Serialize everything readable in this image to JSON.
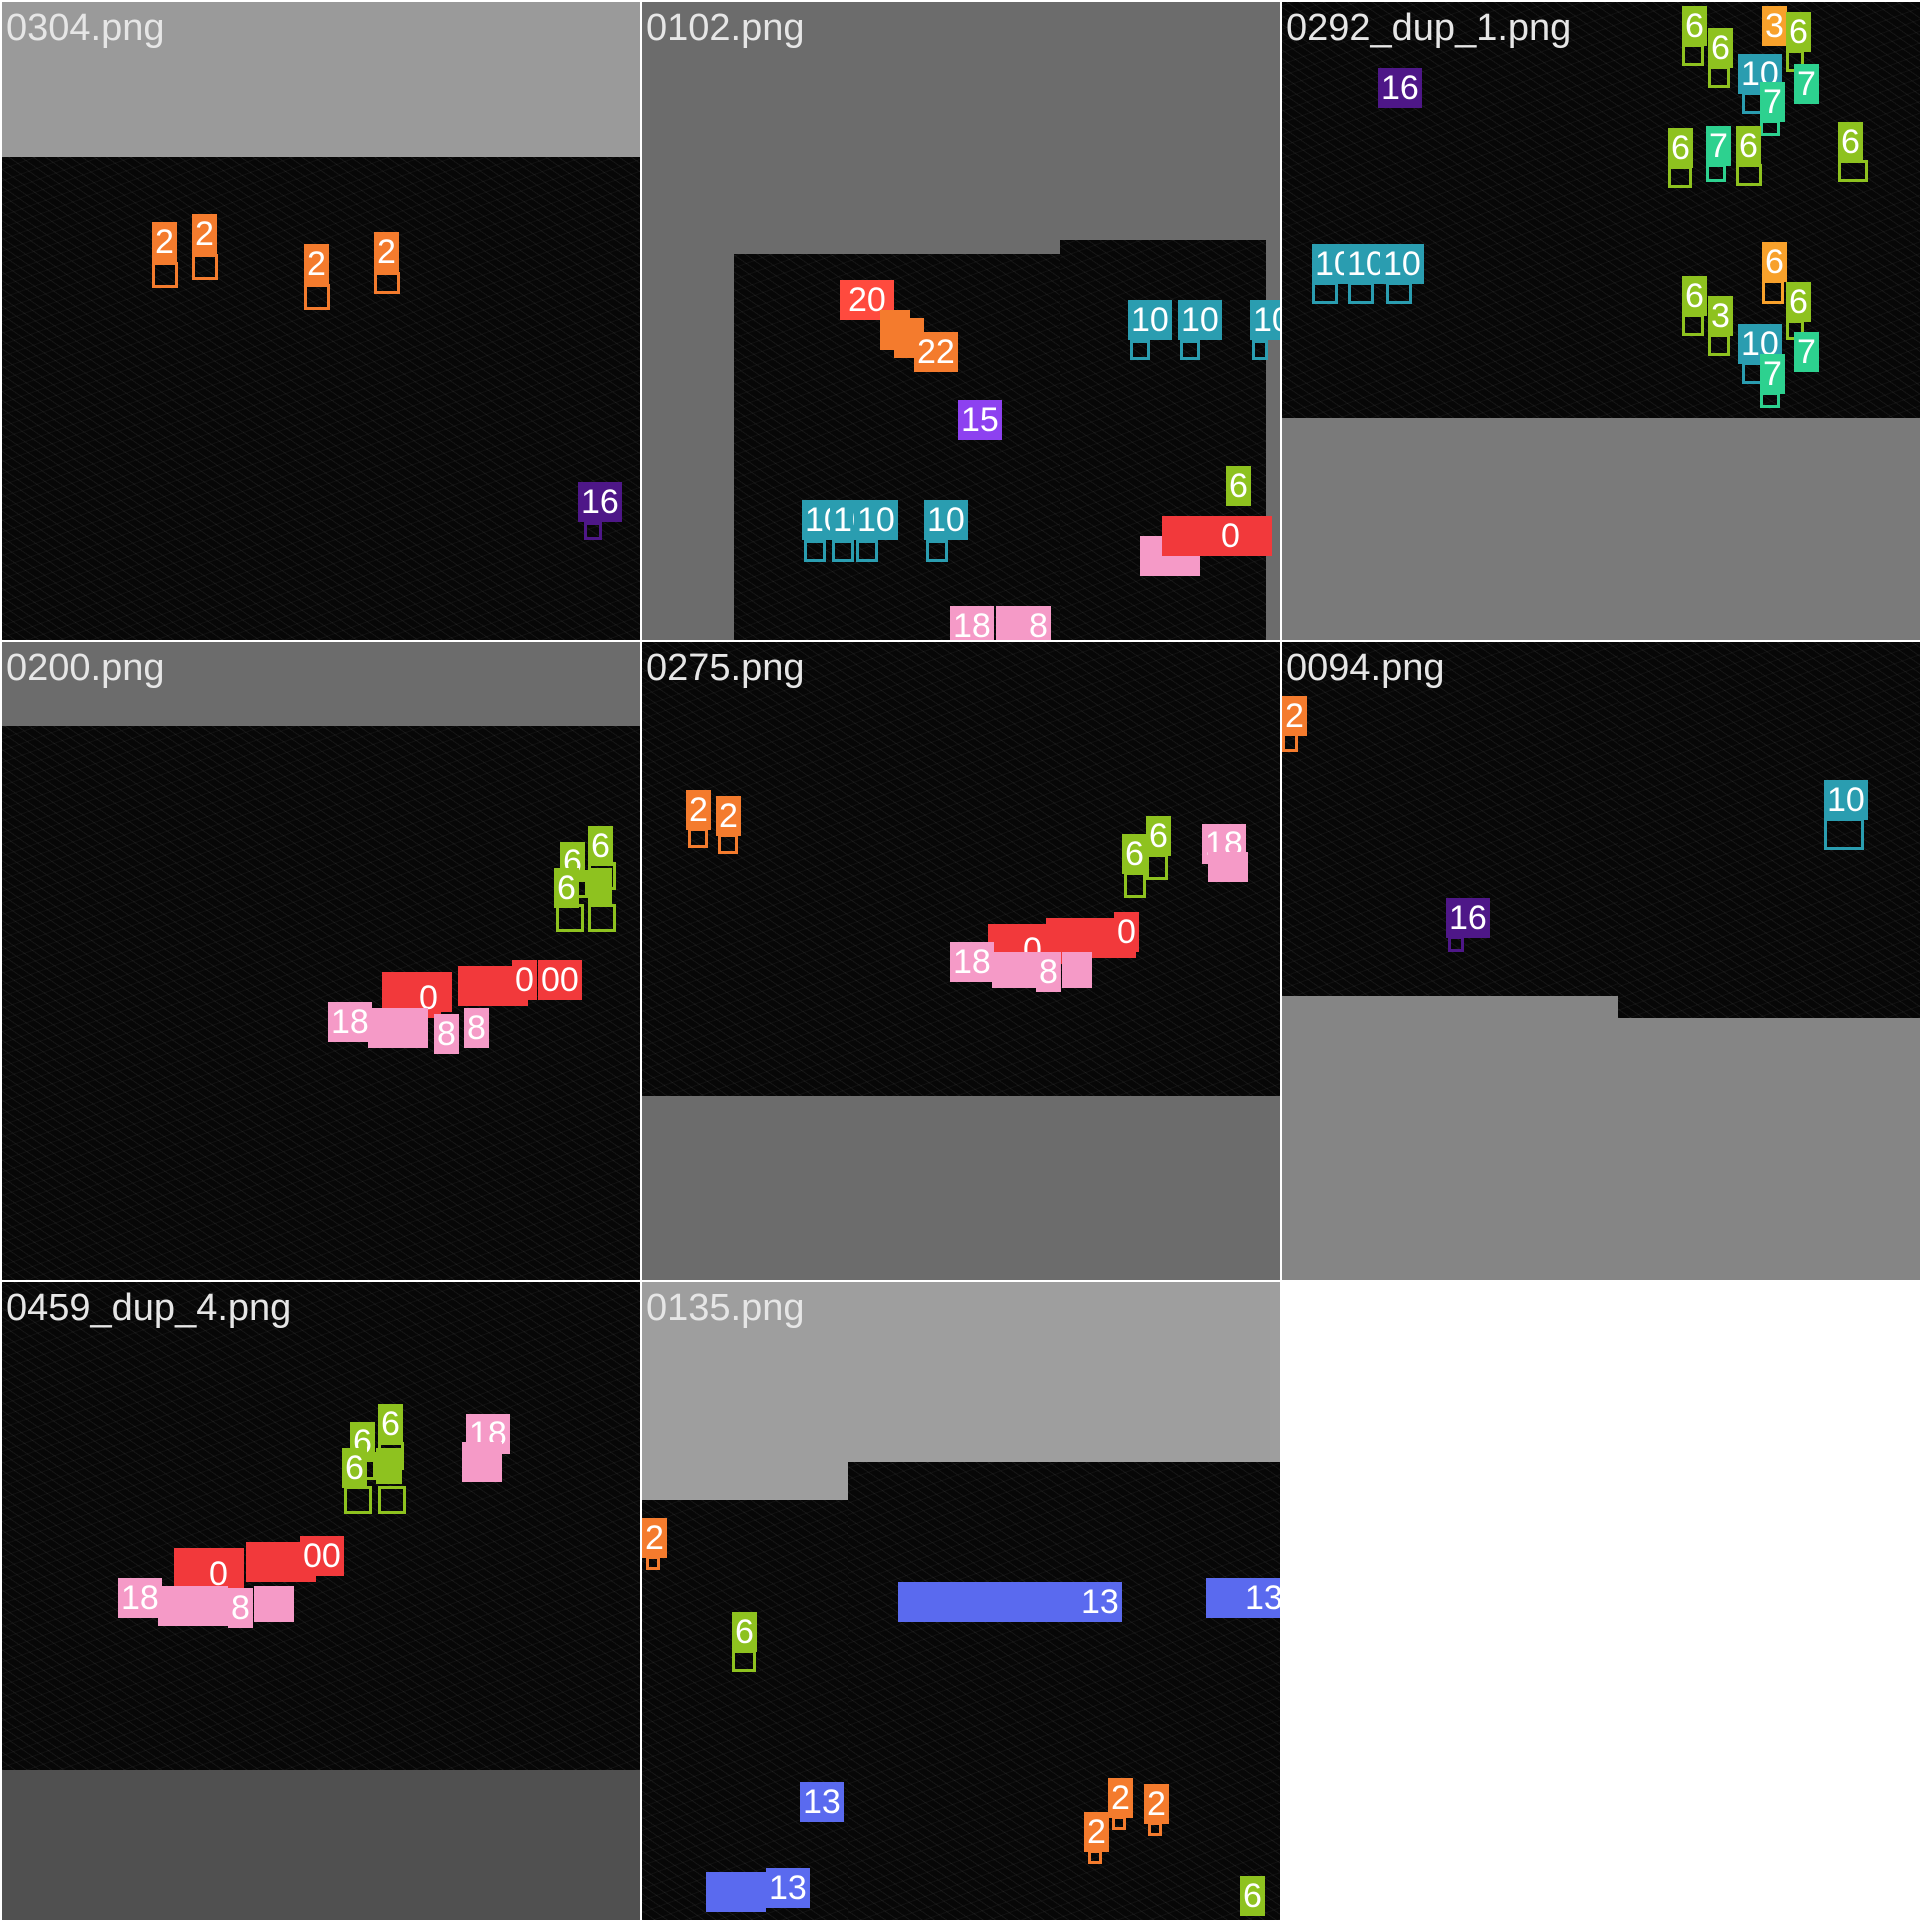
{
  "palette": {
    "2": "#f47b2d",
    "3": "#f8a12b",
    "6": "#8ec21f",
    "7": "#2dd18f",
    "10": "#2a9db0",
    "13": "#5a6aef",
    "15": "#8d41f0",
    "16": "#4e1788",
    "18": "#f59ac7",
    "20": "#ff4a3e",
    "22": "#f47b2d",
    "0": "#f2393b"
  },
  "tiles": [
    {
      "name": "0304.png",
      "detections": [
        {
          "label": "2"
        },
        {
          "label": "2"
        },
        {
          "label": "2"
        },
        {
          "label": "2"
        },
        {
          "label": "16"
        }
      ]
    },
    {
      "name": "0102.png",
      "detections": [
        {
          "label": "20"
        },
        {
          "label": "22"
        },
        {
          "label": "15"
        },
        {
          "label": "10"
        },
        {
          "label": "10"
        },
        {
          "label": "10"
        },
        {
          "label": "10"
        },
        {
          "label": "6"
        },
        {
          "label": "0"
        },
        {
          "label": "18"
        },
        {
          "label": "8"
        }
      ]
    },
    {
      "name": "0292_dup_1.png",
      "detections": [
        {
          "label": "16"
        },
        {
          "label": "10"
        },
        {
          "label": "10"
        },
        {
          "label": "10"
        },
        {
          "label": "6"
        },
        {
          "label": "6"
        },
        {
          "label": "3"
        },
        {
          "label": "6"
        },
        {
          "label": "10"
        },
        {
          "label": "7"
        },
        {
          "label": "7"
        },
        {
          "label": "6"
        },
        {
          "label": "7"
        },
        {
          "label": "6"
        },
        {
          "label": "6"
        },
        {
          "label": "6"
        },
        {
          "label": "3"
        },
        {
          "label": "6"
        },
        {
          "label": "6"
        },
        {
          "label": "10"
        },
        {
          "label": "7"
        },
        {
          "label": "7"
        }
      ]
    },
    {
      "name": "0200.png",
      "detections": [
        {
          "label": "6"
        },
        {
          "label": "6"
        },
        {
          "label": "6"
        },
        {
          "label": "0"
        },
        {
          "label": "0"
        },
        {
          "label": "00"
        },
        {
          "label": "18"
        },
        {
          "label": "8"
        },
        {
          "label": "8"
        }
      ]
    },
    {
      "name": "0275.png",
      "detections": [
        {
          "label": "2"
        },
        {
          "label": "2"
        },
        {
          "label": "6"
        },
        {
          "label": "6"
        },
        {
          "label": "18"
        },
        {
          "label": "0"
        },
        {
          "label": "0"
        },
        {
          "label": "18"
        },
        {
          "label": "8"
        }
      ]
    },
    {
      "name": "0094.png",
      "detections": [
        {
          "label": "2"
        },
        {
          "label": "10"
        },
        {
          "label": "16"
        }
      ]
    },
    {
      "name": "0459_dup_4.png",
      "detections": [
        {
          "label": "6"
        },
        {
          "label": "6"
        },
        {
          "label": "6"
        },
        {
          "label": "18"
        },
        {
          "label": "0"
        },
        {
          "label": "00"
        },
        {
          "label": "18"
        },
        {
          "label": "8"
        }
      ]
    },
    {
      "name": "0135.png",
      "detections": [
        {
          "label": "2"
        },
        {
          "label": "6"
        },
        {
          "label": "13"
        },
        {
          "label": "13"
        },
        {
          "label": "13"
        },
        {
          "label": "13"
        },
        {
          "label": "2"
        },
        {
          "label": "2"
        },
        {
          "label": "2"
        },
        {
          "label": "6"
        }
      ]
    }
  ]
}
